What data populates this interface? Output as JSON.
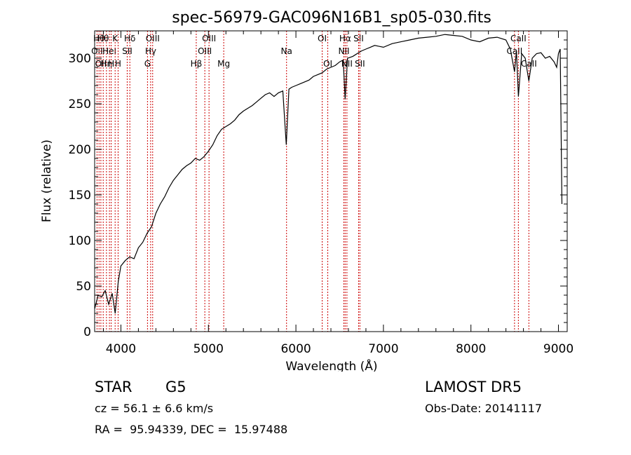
{
  "chart_data": {
    "type": "line",
    "title": "spec-56979-GAC096N16B1_sp05-030.fits",
    "xlabel": "Wavelength (Å)",
    "ylabel": "Flux (relative)",
    "xlim": [
      3700,
      9100
    ],
    "ylim": [
      0,
      330
    ],
    "xticks": [
      4000,
      5000,
      6000,
      7000,
      8000,
      9000
    ],
    "yticks": [
      0,
      50,
      100,
      150,
      200,
      250,
      300
    ],
    "series": [
      {
        "x": [
          3700,
          3740,
          3780,
          3820,
          3860,
          3900,
          3935,
          3970,
          4000,
          4050,
          4100,
          4150,
          4200,
          4250,
          4300,
          4350,
          4400,
          4450,
          4500,
          4550,
          4600,
          4650,
          4700,
          4750,
          4800,
          4850,
          4900,
          4950,
          5000,
          5050,
          5100,
          5150,
          5200,
          5250,
          5300,
          5350,
          5400,
          5450,
          5500,
          5550,
          5600,
          5650,
          5700,
          5750,
          5800,
          5850,
          5890,
          5920,
          5950,
          6000,
          6050,
          6100,
          6150,
          6200,
          6250,
          6300,
          6350,
          6400,
          6450,
          6500,
          6540,
          6563,
          6590,
          6650,
          6700,
          6750,
          6800,
          6850,
          6900,
          6950,
          7000,
          7100,
          7200,
          7300,
          7400,
          7500,
          7600,
          7700,
          7800,
          7900,
          8000,
          8100,
          8200,
          8300,
          8400,
          8450,
          8498,
          8520,
          8542,
          8580,
          8620,
          8662,
          8700,
          8750,
          8800,
          8850,
          8900,
          8950,
          8980,
          9000,
          9020,
          9040
        ],
        "y": [
          25,
          40,
          38,
          45,
          30,
          42,
          20,
          55,
          72,
          78,
          82,
          80,
          92,
          98,
          108,
          115,
          130,
          140,
          148,
          158,
          166,
          172,
          178,
          182,
          185,
          190,
          188,
          192,
          198,
          205,
          215,
          222,
          225,
          228,
          232,
          238,
          242,
          245,
          248,
          252,
          256,
          260,
          262,
          258,
          262,
          264,
          205,
          266,
          268,
          270,
          272,
          274,
          276,
          280,
          282,
          284,
          288,
          290,
          292,
          296,
          298,
          255,
          300,
          302,
          305,
          308,
          310,
          312,
          314,
          313,
          312,
          316,
          318,
          320,
          322,
          323,
          324,
          326,
          325,
          324,
          320,
          318,
          322,
          323,
          320,
          310,
          285,
          308,
          258,
          305,
          300,
          275,
          300,
          305,
          306,
          300,
          302,
          296,
          290,
          305,
          310,
          140
        ]
      }
    ],
    "line_markers": [
      {
        "wavelength": 3727,
        "label": "OII",
        "row": 1
      },
      {
        "wavelength": 3750,
        "label": "Hθ",
        "row": 0
      },
      {
        "wavelength": 3771,
        "label": "OII",
        "row": 2
      },
      {
        "wavelength": 3798,
        "label": "Hθ",
        "row": 0
      },
      {
        "wavelength": 3835,
        "label": "Hη",
        "row": 2
      },
      {
        "wavelength": 3869,
        "label": "HeI",
        "row": 1
      },
      {
        "wavelength": 3889,
        "label": "H",
        "row": 2
      },
      {
        "wavelength": 3934,
        "label": "K",
        "row": 0
      },
      {
        "wavelength": 3968,
        "label": "H",
        "row": 2
      },
      {
        "wavelength": 4072,
        "label": "SII",
        "row": 1
      },
      {
        "wavelength": 4102,
        "label": "Hδ",
        "row": 0
      },
      {
        "wavelength": 4304,
        "label": "G",
        "row": 2
      },
      {
        "wavelength": 4340,
        "label": "Hγ",
        "row": 1
      },
      {
        "wavelength": 4363,
        "label": "OIII",
        "row": 0
      },
      {
        "wavelength": 4861,
        "label": "Hβ",
        "row": 2
      },
      {
        "wavelength": 4959,
        "label": "OIII",
        "row": 1
      },
      {
        "wavelength": 5007,
        "label": "OIII",
        "row": 0
      },
      {
        "wavelength": 5175,
        "label": "Mg",
        "row": 2
      },
      {
        "wavelength": 5893,
        "label": "Na",
        "row": 1
      },
      {
        "wavelength": 6300,
        "label": "OI",
        "row": 0
      },
      {
        "wavelength": 6364,
        "label": "OI",
        "row": 2
      },
      {
        "wavelength": 6548,
        "label": "NII",
        "row": 1
      },
      {
        "wavelength": 6563,
        "label": "Hα",
        "row": 0
      },
      {
        "wavelength": 6583,
        "label": "NII",
        "row": 2
      },
      {
        "wavelength": 6716,
        "label": "SII",
        "row": 0
      },
      {
        "wavelength": 6731,
        "label": "SII",
        "row": 2
      },
      {
        "wavelength": 8498,
        "label": "CaII",
        "row": 1
      },
      {
        "wavelength": 8542,
        "label": "CaII",
        "row": 0
      },
      {
        "wavelength": 8662,
        "label": "CaII",
        "row": 2
      }
    ]
  },
  "info": {
    "class": "STAR",
    "subclass": "G5",
    "survey": "LAMOST DR5",
    "redshift": "cz = 56.1 ± 6.6 km/s",
    "obs_date": "Obs-Date: 20141117",
    "coords": "RA =  95.94339, DEC =  15.97488"
  },
  "colors": {
    "spectrum": "#000000",
    "marker_lines": "#cc0000",
    "frame": "#000000"
  }
}
